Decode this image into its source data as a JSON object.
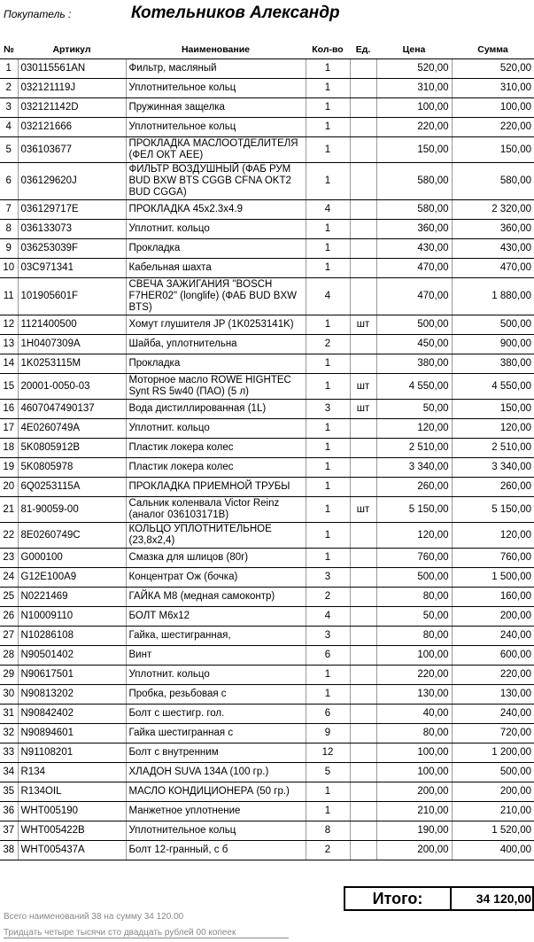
{
  "header": {
    "buyer_label": "Покупатель :",
    "buyer_name": "Котельников Александр"
  },
  "table": {
    "columns": [
      "№",
      "Артикул",
      "Наименование",
      "Кол-во",
      "Ед.",
      "Цена",
      "Сумма"
    ],
    "rows": [
      {
        "n": "1",
        "article": "030115561AN",
        "name": "Фильтр, масляный",
        "qty": "1",
        "price": "520,00",
        "sum": "520,00"
      },
      {
        "n": "2",
        "article": "032121119J",
        "name": "Уплотнительное кольц",
        "qty": "1",
        "price": "310,00",
        "sum": "310,00"
      },
      {
        "n": "3",
        "article": "032121142D",
        "name": "Пружинная защелка",
        "qty": "1",
        "price": "100,00",
        "sum": "100,00"
      },
      {
        "n": "4",
        "article": "032121666",
        "name": "Уплотнительное кольц",
        "qty": "1",
        "price": "220,00",
        "sum": "220,00"
      },
      {
        "n": "5",
        "article": "036103677",
        "name": "ПРОКЛАДКА МАСЛООТДЕЛИТЕЛЯ (ФЕЛ ОКТ АЕЕ)",
        "qty": "1",
        "price": "150,00",
        "sum": "150,00"
      },
      {
        "n": "6",
        "article": "036129620J",
        "name": "ФИЛЬТР ВОЗДУШНЫЙ (ФАБ РУМ BUD BXW BTS CGGB CFNA OKT2 BUD CGGA)",
        "qty": "1",
        "price": "580,00",
        "sum": "580,00"
      },
      {
        "n": "7",
        "article": "036129717E",
        "name": "ПРОКЛАДКА 45x2.3x4.9",
        "qty": "4",
        "price": "580,00",
        "sum": "2 320,00"
      },
      {
        "n": "8",
        "article": "036133073",
        "name": "Уплотнит. кольцо",
        "qty": "1",
        "price": "360,00",
        "sum": "360,00"
      },
      {
        "n": "9",
        "article": "036253039F",
        "name": "Прокладка",
        "qty": "1",
        "price": "430,00",
        "sum": "430,00"
      },
      {
        "n": "10",
        "article": "03C971341",
        "name": "Кабельная шахта",
        "qty": "1",
        "price": "470,00",
        "sum": "470,00"
      },
      {
        "n": "11",
        "article": "101905601F",
        "name": "СВЕЧА ЗАЖИГАНИЯ \"BOSCH F7HER02\" (longlife) (ФАБ BUD BXW BTS)",
        "qty": "4",
        "price": "470,00",
        "sum": "1 880,00"
      },
      {
        "n": "12",
        "article": "1121400500",
        "name": "Хомут глушителя JP (1K0253141K)",
        "qty": "1",
        "unit": "шт",
        "price": "500,00",
        "sum": "500,00"
      },
      {
        "n": "13",
        "article": "1H0407309A",
        "name": "Шайба, уплотнительна",
        "qty": "2",
        "price": "450,00",
        "sum": "900,00"
      },
      {
        "n": "14",
        "article": "1K0253115M",
        "name": "Прокладка",
        "qty": "1",
        "price": "380,00",
        "sum": "380,00"
      },
      {
        "n": "15",
        "article": "20001-0050-03",
        "name": "Моторное масло ROWE HIGHTEC Synt RS 5w40 (ПАО) (5 л)",
        "qty": "1",
        "unit": "шт",
        "price": "4 550,00",
        "sum": "4 550,00"
      },
      {
        "n": "16",
        "article": "4607047490137",
        "name": "Вода дистиллированная (1L)",
        "qty": "3",
        "unit": "шт",
        "price": "50,00",
        "sum": "150,00"
      },
      {
        "n": "17",
        "article": "4E0260749A",
        "name": "Уплотнит. кольцо",
        "qty": "1",
        "price": "120,00",
        "sum": "120,00"
      },
      {
        "n": "18",
        "article": "5K0805912B",
        "name": "Пластик локера колес",
        "qty": "1",
        "price": "2 510,00",
        "sum": "2 510,00"
      },
      {
        "n": "19",
        "article": "5K0805978",
        "name": "Пластик локера колес",
        "qty": "1",
        "price": "3 340,00",
        "sum": "3 340,00"
      },
      {
        "n": "20",
        "article": "6Q0253115A",
        "name": "ПРОКЛАДКА ПРИЕМНОЙ ТРУБЫ",
        "qty": "1",
        "price": "260,00",
        "sum": "260,00"
      },
      {
        "n": "21",
        "article": "81-90059-00",
        "name": "Сальник коленвала Victor Reinz (аналог 036103171B)",
        "qty": "1",
        "unit": "шт",
        "price": "5 150,00",
        "sum": "5 150,00"
      },
      {
        "n": "22",
        "article": "8E0260749C",
        "name": "КОЛЬЦО УПЛОТНИТЕЛЬНОЕ (23,8x2,4)",
        "qty": "1",
        "price": "120,00",
        "sum": "120,00"
      },
      {
        "n": "23",
        "article": "G000100",
        "name": "Смазка для шлицов (80г)",
        "qty": "1",
        "price": "760,00",
        "sum": "760,00"
      },
      {
        "n": "24",
        "article": "G12E100A9",
        "name": "Концентрат Ож (бочка)",
        "qty": "3",
        "price": "500,00",
        "sum": "1 500,00"
      },
      {
        "n": "25",
        "article": "N0221469",
        "name": "ГАЙКА М8 (медная самоконтр)",
        "qty": "2",
        "price": "80,00",
        "sum": "160,00"
      },
      {
        "n": "26",
        "article": "N10009110",
        "name": "БОЛТ М6x12",
        "qty": "4",
        "price": "50,00",
        "sum": "200,00"
      },
      {
        "n": "27",
        "article": "N10286108",
        "name": "Гайка, шестигранная,",
        "qty": "3",
        "price": "80,00",
        "sum": "240,00"
      },
      {
        "n": "28",
        "article": "N90501402",
        "name": "Винт",
        "qty": "6",
        "price": "100,00",
        "sum": "600,00"
      },
      {
        "n": "29",
        "article": "N90617501",
        "name": "Уплотнит. кольцо",
        "qty": "1",
        "price": "220,00",
        "sum": "220,00"
      },
      {
        "n": "30",
        "article": "N90813202",
        "name": "Пробка, резьбовая с",
        "qty": "1",
        "price": "130,00",
        "sum": "130,00"
      },
      {
        "n": "31",
        "article": "N90842402",
        "name": "Болт с шестигр. гол.",
        "qty": "6",
        "price": "40,00",
        "sum": "240,00"
      },
      {
        "n": "32",
        "article": "N90894601",
        "name": "Гайка шестигранная с",
        "qty": "9",
        "price": "80,00",
        "sum": "720,00"
      },
      {
        "n": "33",
        "article": "N91108201",
        "name": "Болт с внутренним",
        "qty": "12",
        "price": "100,00",
        "sum": "1 200,00"
      },
      {
        "n": "34",
        "article": "R134",
        "name": "ХЛАДОН SUVA 134A (100 гр.)",
        "qty": "5",
        "price": "100,00",
        "sum": "500,00"
      },
      {
        "n": "35",
        "article": "R134OIL",
        "name": "МАСЛО КОНДИЦИОНЕРА (50 гр.)",
        "qty": "1",
        "price": "200,00",
        "sum": "200,00"
      },
      {
        "n": "36",
        "article": "WHT005190",
        "name": "Манжетное уплотнение",
        "qty": "1",
        "price": "210,00",
        "sum": "210,00"
      },
      {
        "n": "37",
        "article": "WHT005422B",
        "name": "Уплотнительное кольц",
        "qty": "8",
        "price": "190,00",
        "sum": "1 520,00"
      },
      {
        "n": "38",
        "article": "WHT005437A",
        "name": "Болт 12-гранный, с б",
        "qty": "2",
        "price": "200,00",
        "sum": "400,00"
      }
    ]
  },
  "footer": {
    "total_label": "Итого:",
    "total_value": "34 120,00",
    "summary": "Всего наименований 38 на сумму 34 120.00",
    "words": "Тридцать четыре тысячи сто двадцать рублей 00 копеек"
  }
}
